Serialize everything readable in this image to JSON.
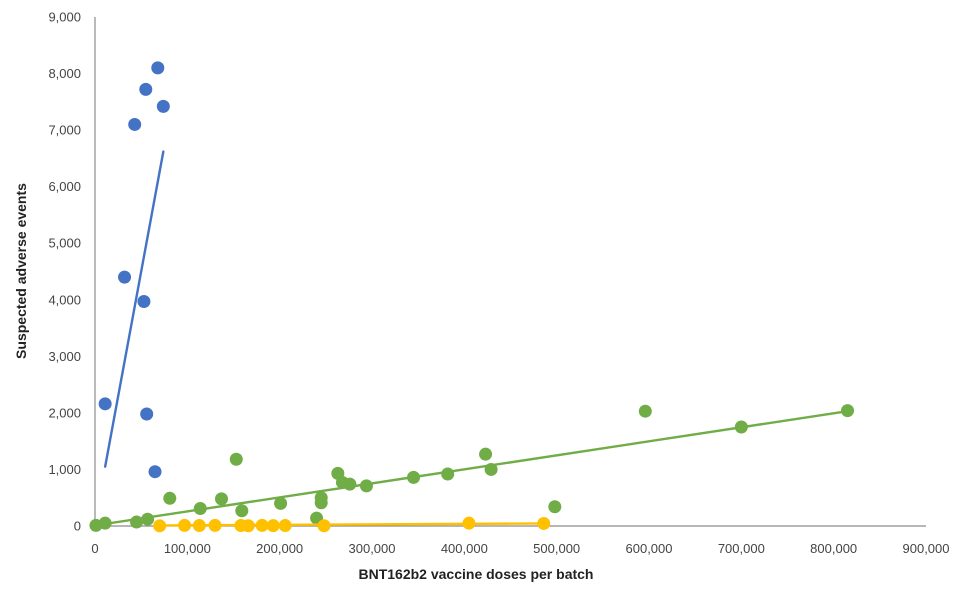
{
  "chart_data": {
    "type": "scatter",
    "title": "",
    "xlabel": "BNT162b2 vaccine doses per batch",
    "ylabel": "Suspected adverse events",
    "xlim": [
      0,
      900000
    ],
    "ylim": [
      0,
      9000
    ],
    "x_ticks": [
      "0",
      "100,000",
      "200,000",
      "300,000",
      "400,000",
      "500,000",
      "600,000",
      "700,000",
      "800,000",
      "900,000"
    ],
    "y_ticks": [
      "0",
      "1,000",
      "2,000",
      "3,000",
      "4,000",
      "5,000",
      "6,000",
      "7,000",
      "8,000",
      "9,000"
    ],
    "grid": false,
    "legend": "none",
    "series": [
      {
        "color": "#4472c4",
        "points": [
          [
            11000,
            2160
          ],
          [
            32000,
            4400
          ],
          [
            43000,
            7100
          ],
          [
            53000,
            3970
          ],
          [
            55000,
            7720
          ],
          [
            56000,
            1980
          ],
          [
            65000,
            960
          ],
          [
            68000,
            8100
          ],
          [
            74000,
            7420
          ]
        ],
        "trendline": [
          [
            11000,
            1050
          ],
          [
            74000,
            6620
          ]
        ]
      },
      {
        "color": "#70ad47",
        "points": [
          [
            1000,
            10
          ],
          [
            11000,
            50
          ],
          [
            45000,
            70
          ],
          [
            57000,
            120
          ],
          [
            81000,
            490
          ],
          [
            114000,
            310
          ],
          [
            137000,
            480
          ],
          [
            153000,
            1180
          ],
          [
            159000,
            270
          ],
          [
            201000,
            400
          ],
          [
            240000,
            140
          ],
          [
            245000,
            410
          ],
          [
            245000,
            500
          ],
          [
            263000,
            930
          ],
          [
            268000,
            770
          ],
          [
            276000,
            740
          ],
          [
            294000,
            710
          ],
          [
            345000,
            860
          ],
          [
            382000,
            920
          ],
          [
            423000,
            1270
          ],
          [
            429000,
            1000
          ],
          [
            498000,
            340
          ],
          [
            596000,
            2030
          ],
          [
            700000,
            1750
          ],
          [
            815000,
            2040
          ]
        ],
        "trendline": [
          [
            0,
            10
          ],
          [
            815000,
            2030
          ]
        ]
      },
      {
        "color": "#ffc000",
        "points": [
          [
            70000,
            3
          ],
          [
            97000,
            10
          ],
          [
            113000,
            8
          ],
          [
            130000,
            10
          ],
          [
            158000,
            8
          ],
          [
            166000,
            5
          ],
          [
            181000,
            10
          ],
          [
            193000,
            6
          ],
          [
            206000,
            8
          ],
          [
            248000,
            5
          ],
          [
            405000,
            50
          ],
          [
            486000,
            45
          ]
        ],
        "trendline": [
          [
            70000,
            10
          ],
          [
            486000,
            45
          ]
        ]
      }
    ]
  }
}
